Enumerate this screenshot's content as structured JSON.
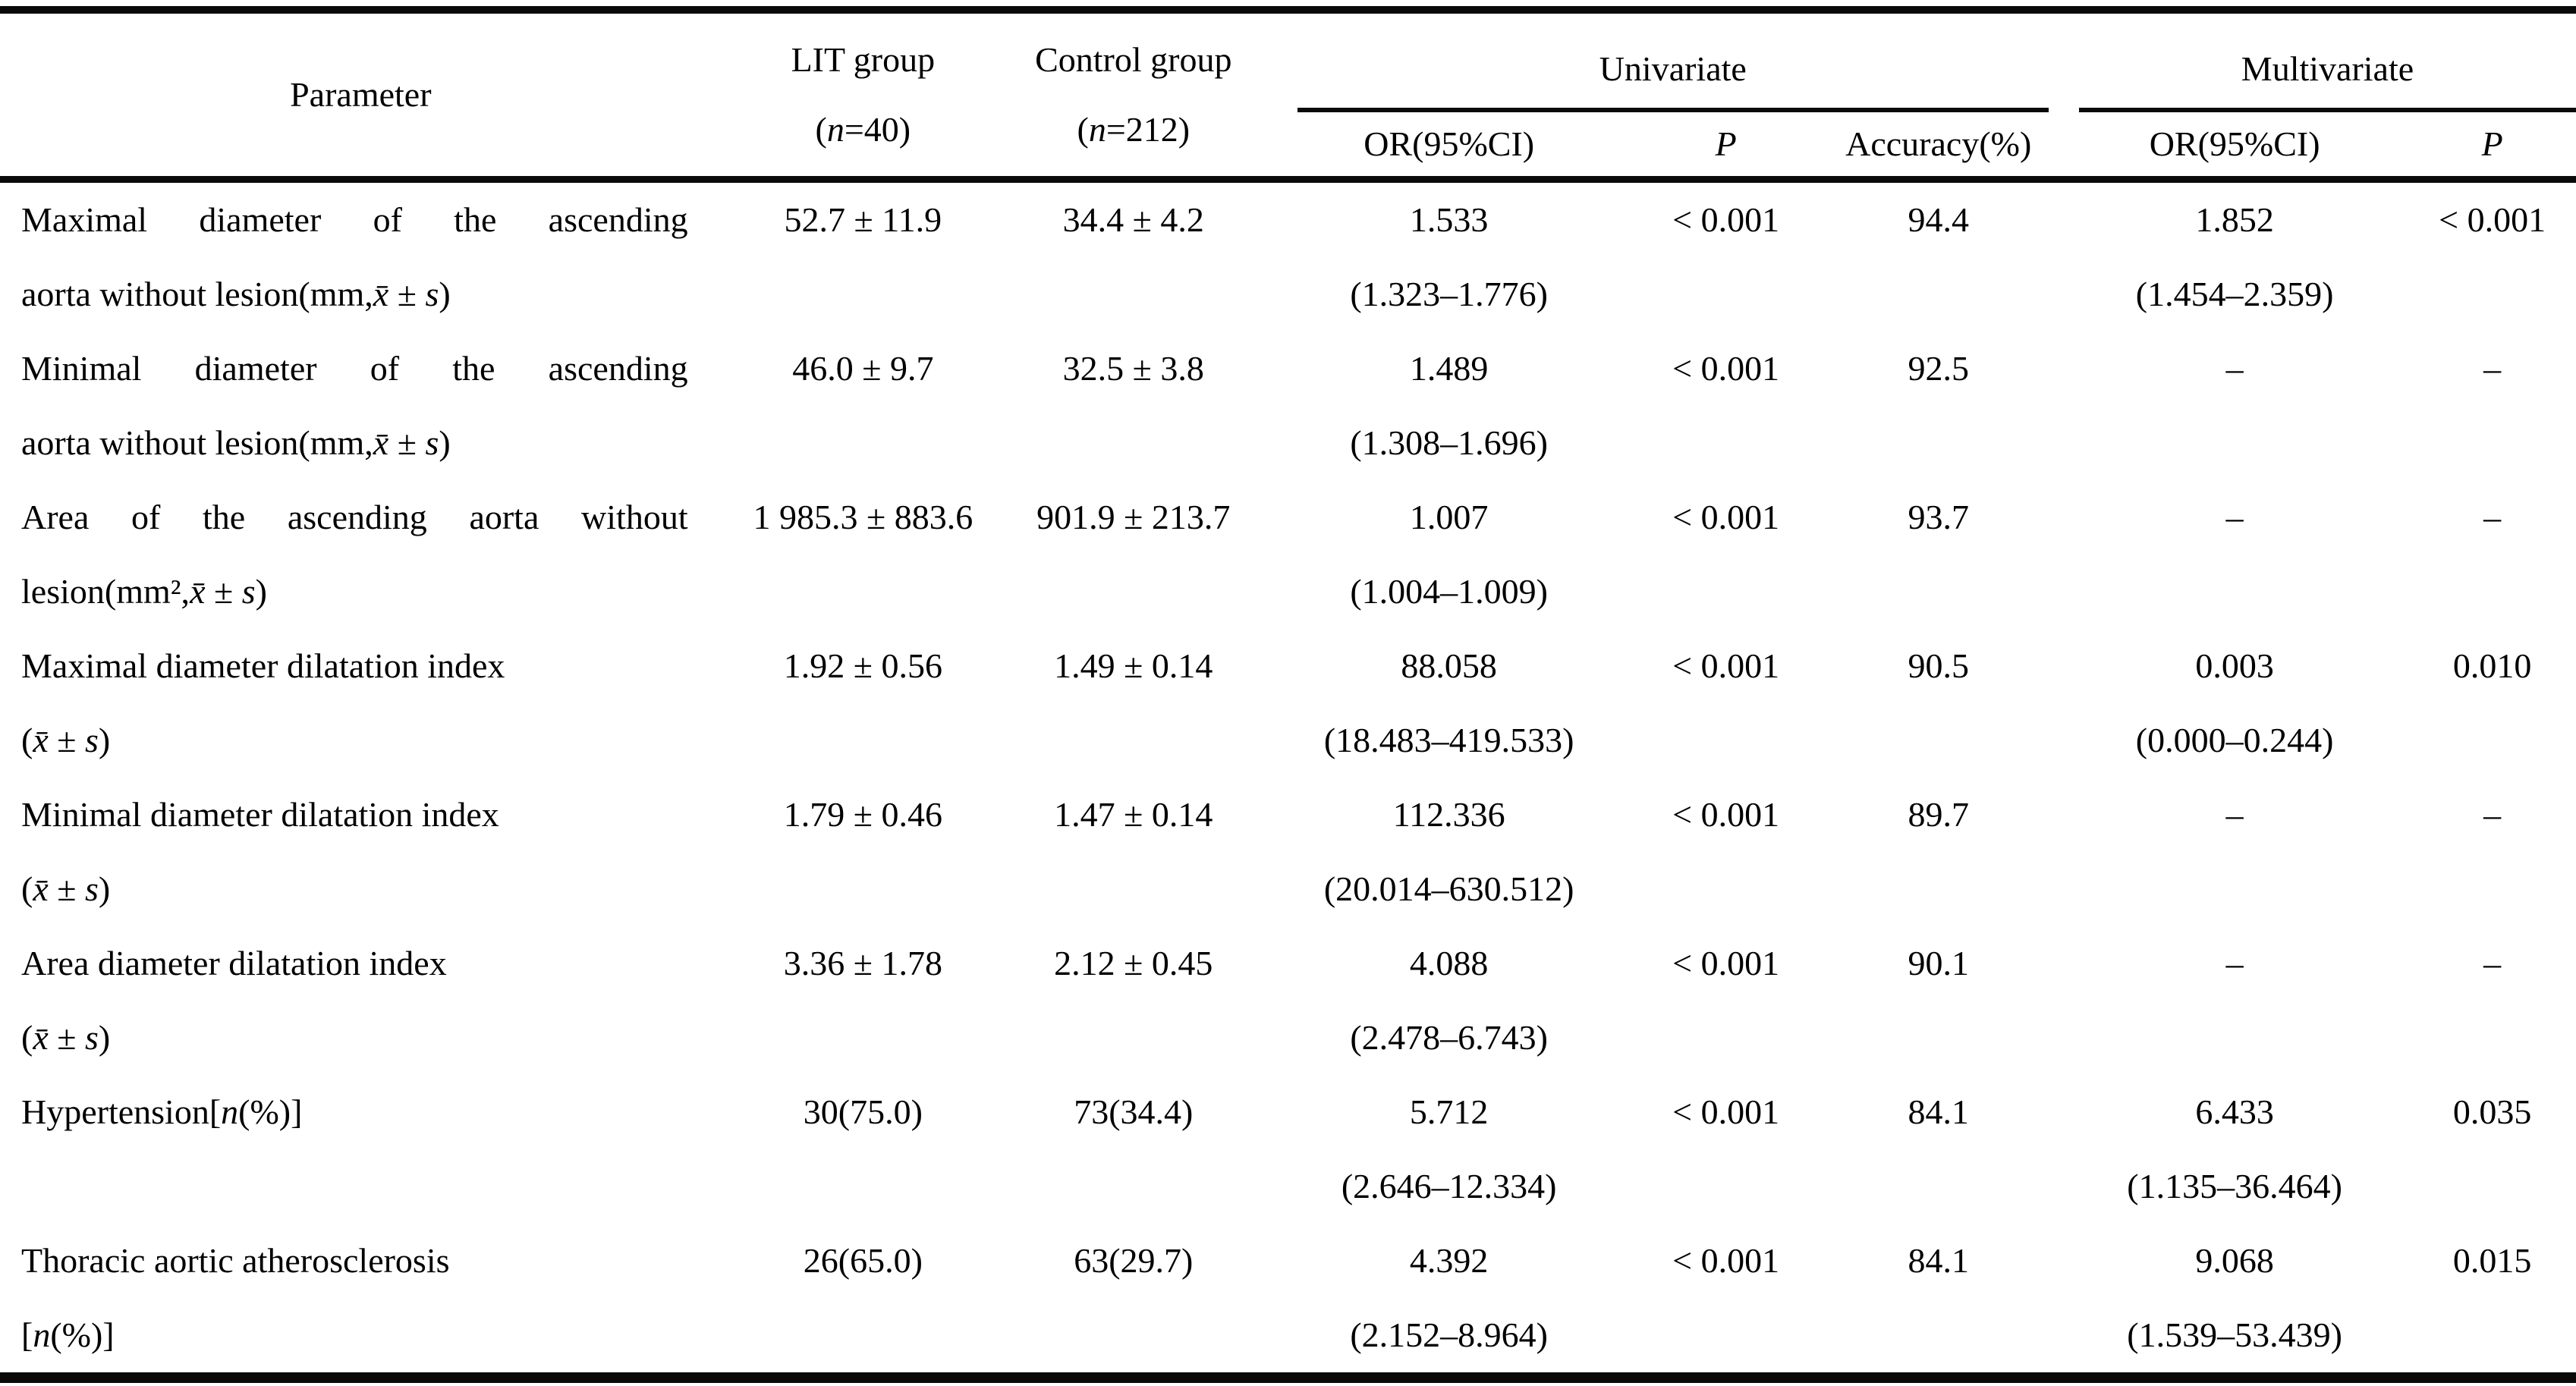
{
  "table": {
    "header": {
      "parameter": "Parameter",
      "lit_line1": "LIT group",
      "lit_line2": "(*n*=40)",
      "control_line1": "Control group",
      "control_line2": "(*n*=212)",
      "univariate": "Univariate",
      "multivariate": "Multivariate",
      "uni_or": "OR(95%CI)",
      "uni_p": "*P*",
      "accuracy": "Accuracy(%)",
      "multi_or": "OR(95%CI)",
      "multi_p": "*P*"
    },
    "rows": [
      {
        "param_lines": [
          "Maximal diameter of the ascending",
          "aorta without lesion(mm,*x̄* ± *s*)"
        ],
        "justify_first_line": true,
        "lit": "52.7 ± 11.9",
        "control": "34.4 ± 4.2",
        "uni_or": "1.533",
        "uni_ci": "(1.323–1.776)",
        "uni_p": "< 0.001",
        "accuracy": "94.4",
        "multi_or": "1.852",
        "multi_ci": "(1.454–2.359)",
        "multi_p": "< 0.001"
      },
      {
        "param_lines": [
          "Minimal diameter of the ascending",
          "aorta without lesion(mm,*x̄* ± *s*)"
        ],
        "justify_first_line": true,
        "lit": "46.0 ± 9.7",
        "control": "32.5 ± 3.8",
        "uni_or": "1.489",
        "uni_ci": "(1.308–1.696)",
        "uni_p": "< 0.001",
        "accuracy": "92.5",
        "multi_or": "–",
        "multi_ci": "",
        "multi_p": "–"
      },
      {
        "param_lines": [
          "Area of the ascending aorta without",
          "lesion(mm²,*x̄* ± *s*)"
        ],
        "justify_first_line": true,
        "lit": "1 985.3 ± 883.6",
        "control": "901.9 ± 213.7",
        "uni_or": "1.007",
        "uni_ci": "(1.004–1.009)",
        "uni_p": "< 0.001",
        "accuracy": "93.7",
        "multi_or": "–",
        "multi_ci": "",
        "multi_p": "–"
      },
      {
        "param_lines": [
          "Maximal diameter dilatation index",
          "(*x̄* ± *s*)"
        ],
        "justify_first_line": false,
        "lit": "1.92 ± 0.56",
        "control": "1.49 ± 0.14",
        "uni_or": "88.058",
        "uni_ci": "(18.483–419.533)",
        "uni_p": "< 0.001",
        "accuracy": "90.5",
        "multi_or": "0.003",
        "multi_ci": "(0.000–0.244)",
        "multi_p": "0.010"
      },
      {
        "param_lines": [
          "Minimal diameter dilatation index",
          "(*x̄* ± *s*)"
        ],
        "justify_first_line": false,
        "lit": "1.79 ± 0.46",
        "control": "1.47 ± 0.14",
        "uni_or": "112.336",
        "uni_ci": "(20.014–630.512)",
        "uni_p": "< 0.001",
        "accuracy": "89.7",
        "multi_or": "–",
        "multi_ci": "",
        "multi_p": "–"
      },
      {
        "param_lines": [
          "Area diameter dilatation index",
          "(*x̄* ± *s*)"
        ],
        "justify_first_line": false,
        "lit": "3.36 ± 1.78",
        "control": "2.12 ± 0.45",
        "uni_or": "4.088",
        "uni_ci": "(2.478–6.743)",
        "uni_p": "< 0.001",
        "accuracy": "90.1",
        "multi_or": "–",
        "multi_ci": "",
        "multi_p": "–"
      },
      {
        "param_lines": [
          "Hypertension[*n*(%)]",
          ""
        ],
        "justify_first_line": false,
        "lit": "30(75.0)",
        "control": "73(34.4)",
        "uni_or": "5.712",
        "uni_ci": "(2.646–12.334)",
        "uni_p": "< 0.001",
        "accuracy": "84.1",
        "multi_or": "6.433",
        "multi_ci": "(1.135–36.464)",
        "multi_p": "0.035"
      },
      {
        "param_lines": [
          "Thoracic aortic atherosclerosis",
          "[*n*(%)]"
        ],
        "justify_first_line": false,
        "lit": "26(65.0)",
        "control": "63(29.7)",
        "uni_or": "4.392",
        "uni_ci": "(2.152–8.964)",
        "uni_p": "< 0.001",
        "accuracy": "84.1",
        "multi_or": "9.068",
        "multi_ci": "(1.539–53.439)",
        "multi_p": "0.015"
      }
    ]
  }
}
